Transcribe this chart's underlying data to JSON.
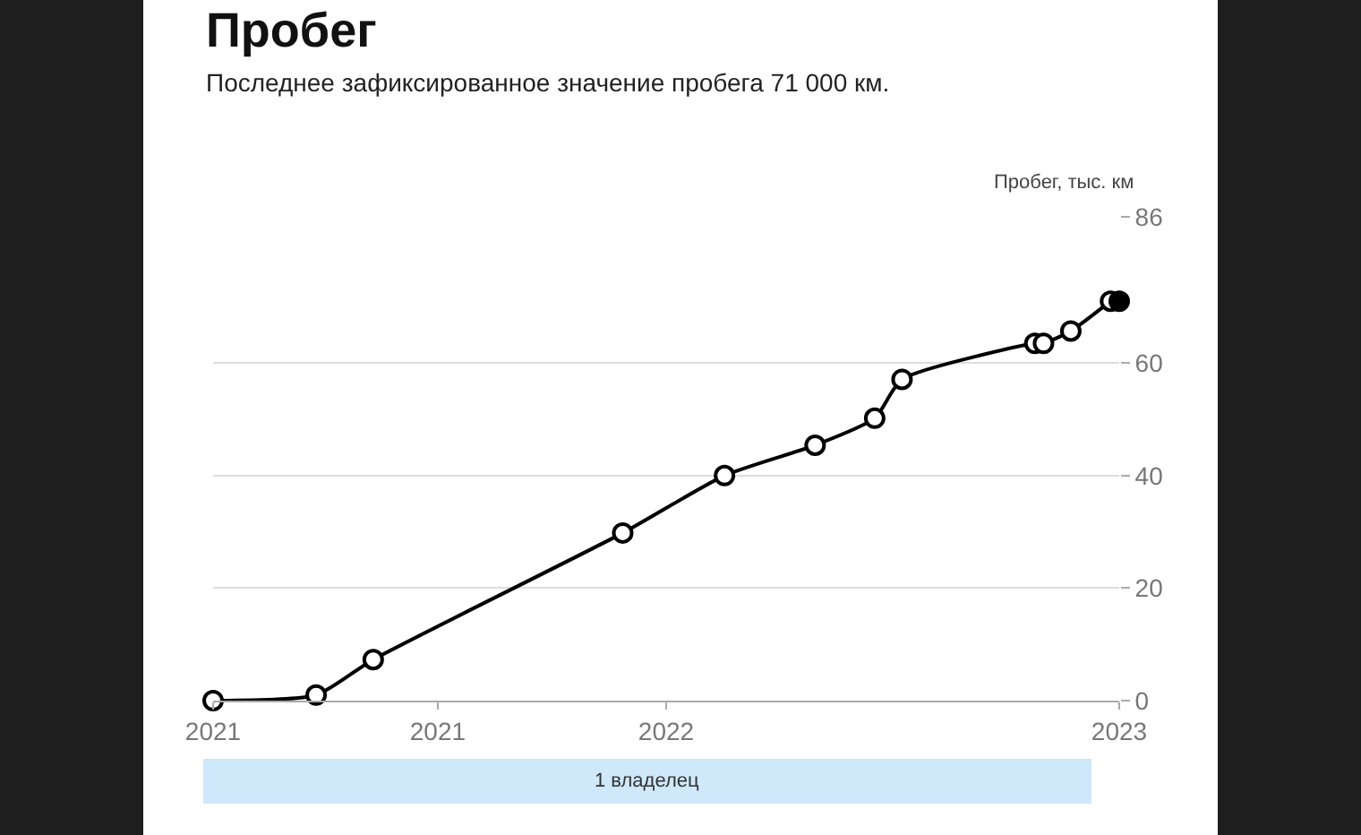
{
  "chart_data": {
    "type": "line",
    "title": "Пробег",
    "subtitle": "Последнее зафиксированное значение пробега 71 000 км.",
    "ylabel": "Пробег, тыс. км",
    "xlim": [
      "2021-01-01",
      "2023-01-01"
    ],
    "xticks": [
      {
        "value": "2021-01-01",
        "label": "2021"
      },
      {
        "value": "2021-07-01",
        "label": "2021"
      },
      {
        "value": "2022-01-01",
        "label": "2022"
      },
      {
        "value": "2023-01-01",
        "label": "2023"
      }
    ],
    "ylim": [
      0,
      86
    ],
    "yticks": [
      0,
      20,
      40,
      60,
      86
    ],
    "grid": "y",
    "marker": "circle",
    "line_style": "solid",
    "legend": false,
    "series": [
      {
        "color": "#000000",
        "x": [
          "2021-01-01",
          "2021-03-25",
          "2021-05-10",
          "2021-11-27",
          "2022-02-17",
          "2022-05-01",
          "2022-06-18",
          "2022-07-10",
          "2022-10-25",
          "2022-11-01",
          "2022-11-23",
          "2022-12-25"
        ],
        "values": [
          0,
          1,
          7.3,
          29.8,
          40,
          45.4,
          50.2,
          57.1,
          63.5,
          63.5,
          65.7,
          71
        ]
      },
      {
        "type": "scatter",
        "color": "#000000",
        "x": [
          "2023-01-01"
        ],
        "values": [
          71
        ]
      }
    ],
    "annotations": [
      "1 владелец"
    ]
  }
}
